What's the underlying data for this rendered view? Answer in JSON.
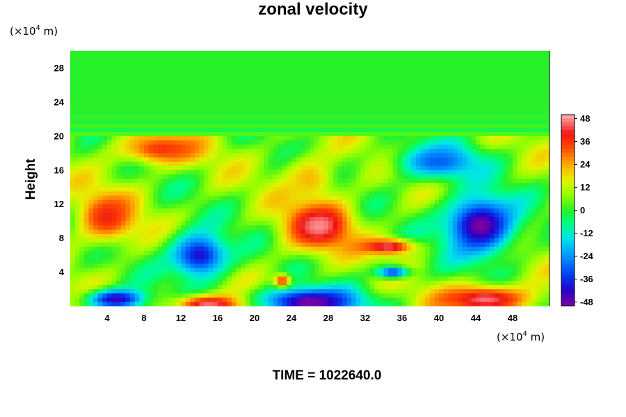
{
  "title": "zonal velocity",
  "time_label": "TIME = 1022640.0",
  "chart_data": {
    "type": "heatmap",
    "title": "zonal velocity",
    "xlabel": "",
    "ylabel": "Height",
    "x_unit": {
      "base": "(×10",
      "exp": "4",
      "rest": " m)"
    },
    "y_unit": {
      "base": "(×10",
      "exp": "4",
      "rest": " m)"
    },
    "xlim": [
      0,
      52
    ],
    "ylim": [
      0,
      30
    ],
    "x_ticks": [
      4,
      8,
      12,
      16,
      20,
      24,
      28,
      32,
      36,
      40,
      44,
      48
    ],
    "y_ticks": [
      4,
      8,
      12,
      16,
      20,
      24,
      28
    ],
    "colorbar": {
      "ticks": [
        48,
        36,
        24,
        12,
        0,
        -12,
        -24,
        -36,
        -48
      ],
      "range": [
        -50,
        50
      ]
    },
    "background_value": 0,
    "layer_top": 20,
    "features": [
      {
        "label": "red-upper-left",
        "x": 10,
        "y": 18.5,
        "rx": 5,
        "ry": 2,
        "value": 36
      },
      {
        "label": "red-left",
        "x": 4,
        "y": 10.5,
        "rx": 3.5,
        "ry": 3.2,
        "value": 38
      },
      {
        "label": "blue-lower-mid",
        "x": 14,
        "y": 6,
        "rx": 3.5,
        "ry": 3,
        "value": -40
      },
      {
        "label": "pink-center",
        "x": 27,
        "y": 9.5,
        "rx": 4,
        "ry": 3.2,
        "value": 48
      },
      {
        "label": "pink-filament",
        "x": 34.5,
        "y": 7,
        "rx": 3,
        "ry": 1,
        "value": 46
      },
      {
        "label": "orange-center-up",
        "x": 26,
        "y": 15,
        "rx": 3,
        "ry": 3,
        "value": 22
      },
      {
        "label": "purple-right",
        "x": 44.5,
        "y": 9.5,
        "rx": 4.2,
        "ry": 3.8,
        "value": -50
      },
      {
        "label": "blue-upper-right",
        "x": 40,
        "y": 17,
        "rx": 5,
        "ry": 2.3,
        "value": -30
      },
      {
        "label": "blue-bottom-left",
        "x": 5,
        "y": 0.8,
        "rx": 3.5,
        "ry": 1.3,
        "value": -44
      },
      {
        "label": "purple-bottom-mid",
        "x": 26,
        "y": 0.5,
        "rx": 6,
        "ry": 1.8,
        "value": -50
      },
      {
        "label": "pink-bottom-mid",
        "x": 15,
        "y": 0.2,
        "rx": 4,
        "ry": 1.2,
        "value": 46
      },
      {
        "label": "pink-bottom-right",
        "x": 45,
        "y": 0.8,
        "rx": 5.5,
        "ry": 1.8,
        "value": 46
      },
      {
        "label": "red-small",
        "x": 23,
        "y": 3,
        "rx": 1,
        "ry": 0.8,
        "value": 36
      },
      {
        "label": "blue-small",
        "x": 35,
        "y": 4,
        "rx": 2,
        "ry": 0.8,
        "value": -34
      }
    ]
  }
}
